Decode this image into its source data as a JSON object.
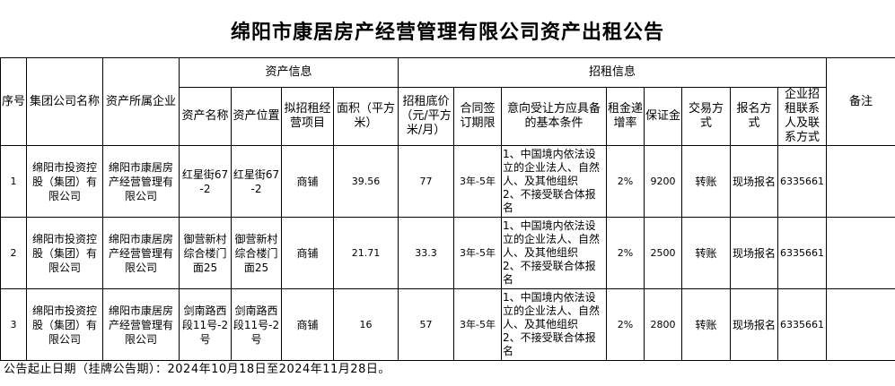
{
  "title": "绵阳市康居房产经营管理有限公司资产出租公告",
  "headers": {
    "seq": "序号",
    "group": "集团公司名称",
    "owner": "资产所属企业",
    "asset_info": "资产信息",
    "lease_info": "招租信息",
    "remarks": "备注",
    "asset_name": "资产名称",
    "asset_location": "资产位置",
    "business": "拟招租经营项目",
    "area": "面积（平方米）",
    "base_price": "招租底价（元/平方米/月）",
    "term": "合同签订期限",
    "conditions": "意向受让方应具备的基本条件",
    "increase": "租金递增率",
    "deposit": "保证金",
    "trade": "交易方式",
    "signup": "报名方式",
    "contact": "企业招租联系人及联系方式"
  },
  "rows": [
    {
      "seq": "1",
      "group": "绵阳市投资控股（集团）有限公司",
      "owner": "绵阳市康居房产经营管理有限公司",
      "asset_name": "红星街67-2",
      "asset_location": "红星街67-2",
      "business": "商铺",
      "area": "39.56",
      "base_price": "77",
      "term": "3年-5年",
      "conditions": "1、中国境内依法设立的企业法人、自然人、及其他组织\n2、不接受联合体报名",
      "increase": "2%",
      "deposit": "9200",
      "trade": "转账",
      "signup": "现场报名",
      "contact": "6335661",
      "remarks": ""
    },
    {
      "seq": "2",
      "group": "绵阳市投资控股（集团）有限公司",
      "owner": "绵阳市康居房产经营管理有限公司",
      "asset_name": "御营新村综合楼门面25",
      "asset_location": "御营新村综合楼门面25",
      "business": "商铺",
      "area": "21.71",
      "base_price": "33.3",
      "term": "3年-5年",
      "conditions": "1、中国境内依法设立的企业法人、自然人、及其他组织\n2、不接受联合体报名",
      "increase": "2%",
      "deposit": "2500",
      "trade": "转账",
      "signup": "现场报名",
      "contact": "6335661",
      "remarks": ""
    },
    {
      "seq": "3",
      "group": "绵阳市投资控股（集团）有限公司",
      "owner": "绵阳市康居房产经营管理有限公司",
      "asset_name": "剑南路西段11号-2号",
      "asset_location": "剑南路西段11号-2号",
      "business": "商铺",
      "area": "16",
      "base_price": "57",
      "term": "3年-5年",
      "conditions": "1、中国境内依法设立的企业法人、自然人、及其他组织\n2、不接受联合体报名",
      "increase": "2%",
      "deposit": "2800",
      "trade": "转账",
      "signup": "现场报名",
      "contact": "6335661",
      "remarks": ""
    }
  ],
  "footer": "公告起止日期（挂牌公告期）：2024年10月18日至2024年11月28日。"
}
